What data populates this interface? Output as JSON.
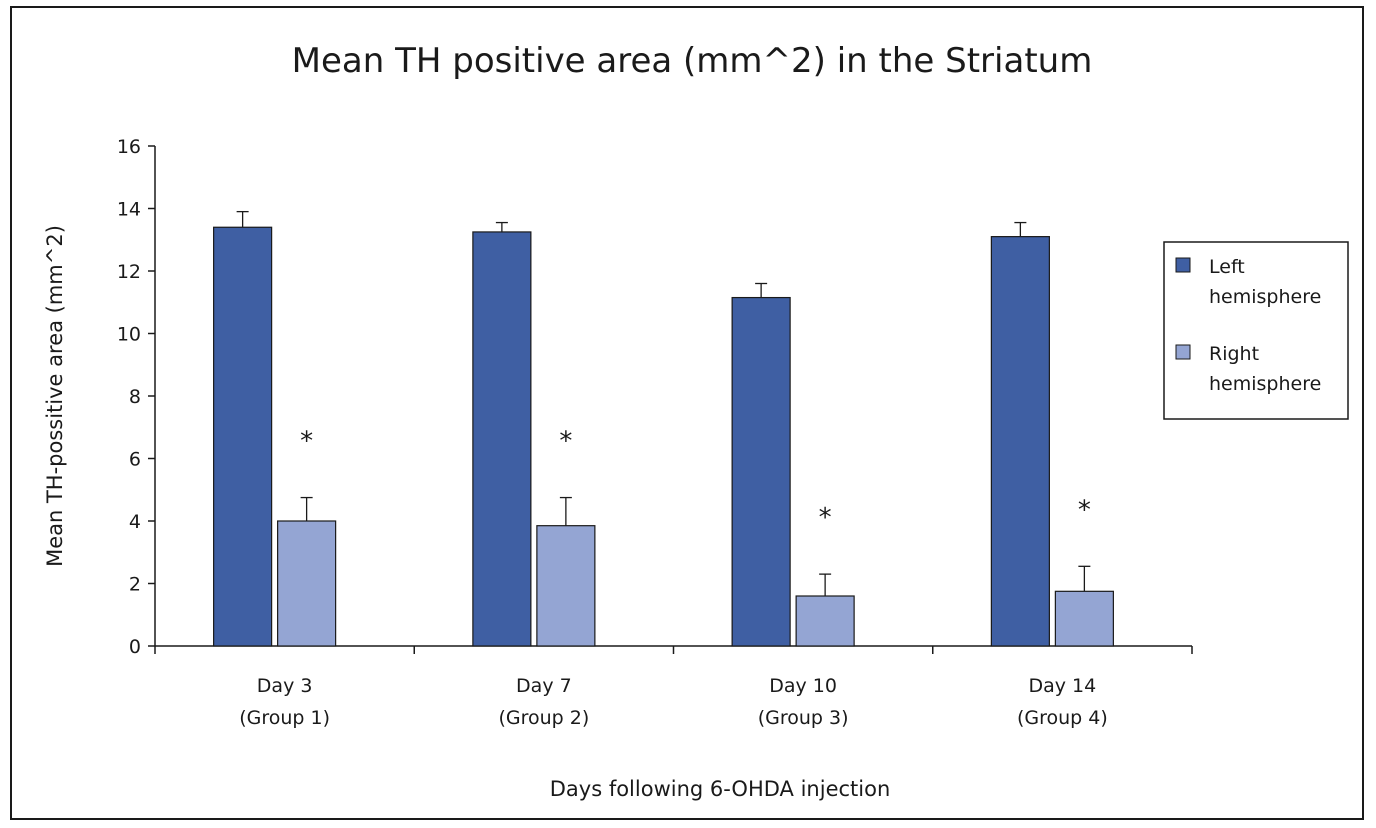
{
  "chart_data": {
    "type": "bar",
    "title": "Mean TH positive area (mm^2) in the Striatum",
    "xlabel": "Days following 6-OHDA injection",
    "ylabel": "Mean TH-possitive area (mm^2)",
    "ylim": [
      0,
      16
    ],
    "yticks": [
      0,
      2,
      4,
      6,
      8,
      10,
      12,
      14,
      16
    ],
    "categories": [
      [
        "Day 3",
        "(Group 1)"
      ],
      [
        "Day 7",
        "(Group 2)"
      ],
      [
        "Day 10",
        "(Group 3)"
      ],
      [
        "Day 14",
        "(Group 4)"
      ]
    ],
    "series": [
      {
        "name": "Left hemisphere",
        "legend_lines": [
          "Left",
          "hemisphere"
        ],
        "color": "#3f5fa3",
        "values": [
          13.4,
          13.25,
          11.15,
          13.1
        ],
        "errors": [
          0.5,
          0.3,
          0.45,
          0.45
        ]
      },
      {
        "name": "Right hemisphere",
        "legend_lines": [
          "Right",
          "hemisphere"
        ],
        "color": "#94a5d3",
        "values": [
          4.0,
          3.85,
          1.6,
          1.75
        ],
        "errors": [
          0.75,
          0.9,
          0.7,
          0.8
        ]
      }
    ],
    "significance_markers": [
      "*",
      "*",
      "*",
      "*"
    ],
    "grid": false,
    "legend_position": "right"
  }
}
